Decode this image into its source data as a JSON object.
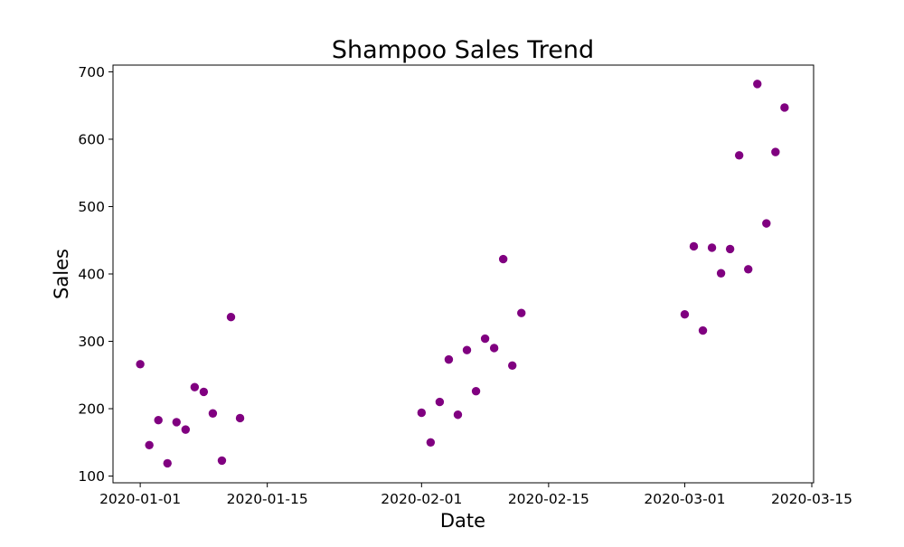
{
  "chart_data": {
    "type": "scatter",
    "title": "Shampoo Sales Trend",
    "xlabel": "Date",
    "ylabel": "Sales",
    "x_axis_type": "date",
    "xlim": [
      "2019-12-29",
      "2020-03-15"
    ],
    "ylim": [
      90,
      710
    ],
    "grid": false,
    "legend": "none",
    "marker_color": "#800080",
    "x_ticks": [
      "2020-01-01",
      "2020-01-15",
      "2020-02-01",
      "2020-02-15",
      "2020-03-01",
      "2020-03-15"
    ],
    "y_ticks": [
      100,
      200,
      300,
      400,
      500,
      600,
      700
    ],
    "series": [
      {
        "x": [
          "2020-01-01",
          "2020-01-02",
          "2020-01-03",
          "2020-01-04",
          "2020-01-05",
          "2020-01-06",
          "2020-01-07",
          "2020-01-08",
          "2020-01-09",
          "2020-01-10",
          "2020-01-11",
          "2020-01-12",
          "2020-02-01",
          "2020-02-02",
          "2020-02-03",
          "2020-02-04",
          "2020-02-05",
          "2020-02-06",
          "2020-02-07",
          "2020-02-08",
          "2020-02-09",
          "2020-02-10",
          "2020-02-11",
          "2020-02-12",
          "2020-03-01",
          "2020-03-02",
          "2020-03-03",
          "2020-03-04",
          "2020-03-05",
          "2020-03-06",
          "2020-03-07",
          "2020-03-08",
          "2020-03-09",
          "2020-03-10",
          "2020-03-11",
          "2020-03-12"
        ],
        "y": [
          266,
          146,
          183,
          119,
          180,
          169,
          232,
          225,
          193,
          123,
          336,
          186,
          194,
          150,
          210,
          273,
          191,
          287,
          226,
          304,
          290,
          422,
          264,
          342,
          340,
          441,
          316,
          439,
          401,
          437,
          576,
          407,
          682,
          475,
          581,
          647
        ]
      }
    ]
  }
}
